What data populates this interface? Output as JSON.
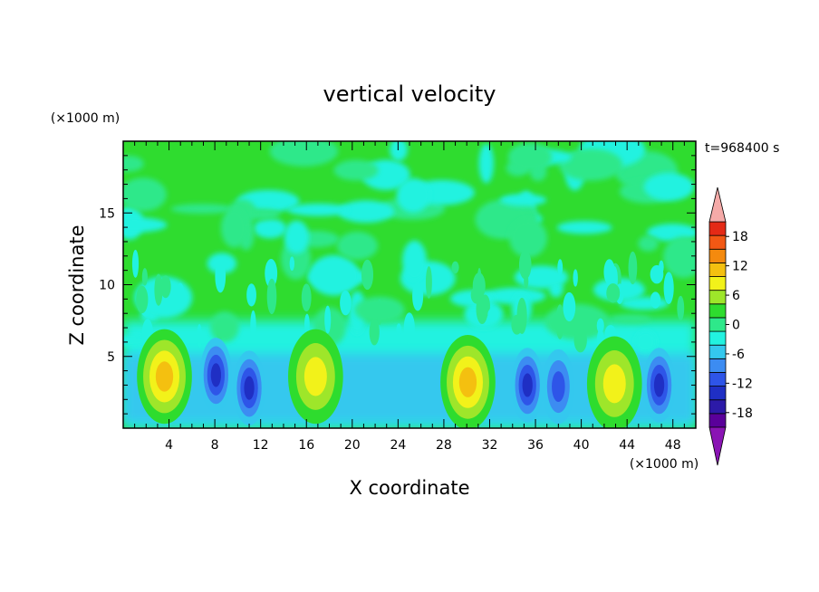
{
  "chart_data": {
    "type": "heatmap",
    "title": "vertical velocity",
    "xlabel": "X coordinate",
    "ylabel": "Z coordinate",
    "x_unit": "(×1000 m)",
    "y_unit": "(×1000 m)",
    "time_label": "t=968400 s",
    "xlim": [
      0,
      50
    ],
    "ylim": [
      0,
      20
    ],
    "xticks": [
      4,
      8,
      12,
      16,
      20,
      24,
      28,
      32,
      36,
      40,
      44,
      48
    ],
    "yticks": [
      5,
      10,
      15
    ],
    "colorbar": {
      "ticks": [
        18,
        12,
        6,
        0,
        -6,
        -12,
        -18
      ],
      "levels": [
        -21,
        -18,
        -15,
        -12,
        -9,
        -6,
        -3,
        0,
        3,
        6,
        9,
        12,
        15,
        18,
        21
      ],
      "colors": [
        "#5a009a",
        "#2c1aa8",
        "#1f2fc4",
        "#2e55e8",
        "#3c8cf2",
        "#34c8ee",
        "#22f2e0",
        "#2ee88a",
        "#2edc2e",
        "#9ee62a",
        "#f2f21a",
        "#f4c010",
        "#f48a0e",
        "#f25814",
        "#e42a16"
      ],
      "under_color": "#8a14b4",
      "over_color": "#f5aaa8"
    },
    "cells": {
      "updrafts": [
        {
          "x": 3.6,
          "z": 3.6,
          "peak": 14
        },
        {
          "x": 16.8,
          "z": 3.6,
          "peak": 11
        },
        {
          "x": 30.1,
          "z": 3.2,
          "peak": 14
        },
        {
          "x": 42.9,
          "z": 3.1,
          "peak": 10
        }
      ],
      "downdrafts": [
        {
          "x": 8.1,
          "z": 3.7,
          "peak": -12
        },
        {
          "x": 11.0,
          "z": 2.8,
          "peak": -12
        },
        {
          "x": 35.3,
          "z": 3.0,
          "peak": -13
        },
        {
          "x": 38.0,
          "z": 2.9,
          "peak": -11
        },
        {
          "x": 46.8,
          "z": 3.0,
          "peak": -12
        }
      ]
    }
  }
}
